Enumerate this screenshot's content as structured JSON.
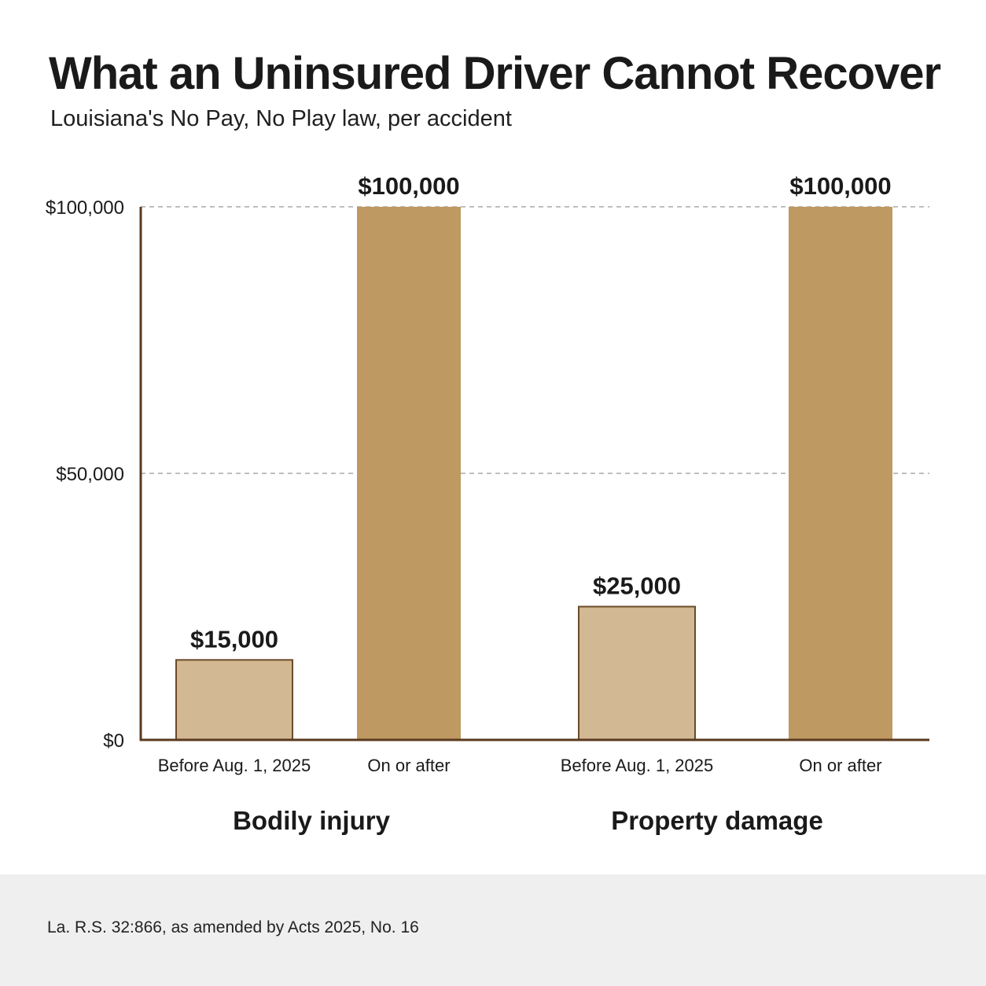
{
  "title": "What an Uninsured Driver Cannot Recover",
  "subtitle": "Louisiana's No Pay, No Play law, per accident",
  "source": "La. R.S. 32:866, as amended by Acts 2025, No. 16",
  "colors": {
    "before_fill": "#d2b993",
    "after_fill": "#bf9962",
    "bar_stroke": "#6b4a2a",
    "axis": "#5a3a1f",
    "grid": "#aaaaaa",
    "text": "#1a1a1a",
    "footer_bg": "#efefef"
  },
  "chart_data": {
    "type": "bar",
    "title": "What an Uninsured Driver Cannot Recover",
    "subtitle": "Louisiana's No Pay, No Play law, per accident",
    "xlabel": "",
    "ylabel": "",
    "ylim": [
      0,
      100000
    ],
    "yticks": [
      0,
      50000,
      100000
    ],
    "ytick_labels": [
      "$0",
      "$50,000",
      "$100,000"
    ],
    "grid": true,
    "legend": "none",
    "groups": [
      {
        "label": "Bodily injury",
        "bars": [
          {
            "category": "Before Aug. 1, 2025",
            "value": 15000,
            "value_label": "$15,000",
            "style": "before"
          },
          {
            "category": "On or after",
            "value": 100000,
            "value_label": "$100,000",
            "style": "after"
          }
        ]
      },
      {
        "label": "Property damage",
        "bars": [
          {
            "category": "Before Aug. 1, 2025",
            "value": 25000,
            "value_label": "$25,000",
            "style": "before"
          },
          {
            "category": "On or after",
            "value": 100000,
            "value_label": "$100,000",
            "style": "after"
          }
        ]
      }
    ]
  }
}
